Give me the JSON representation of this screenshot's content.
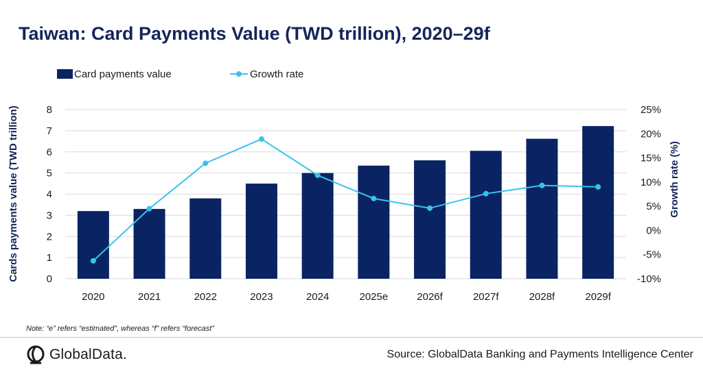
{
  "title": "Taiwan: Card Payments Value (TWD trillion), 2020–29f",
  "note": "Note: “e” refers “estimated”, whereas “f” refers “forecast”",
  "source": "Source: GlobalData Banking and Payments Intelligence Center",
  "logo": {
    "text": "GlobalData.",
    "icon": "globaldata-logo-icon"
  },
  "colors": {
    "bar": "#0a2463",
    "line": "#39c3ec",
    "title": "#14255a",
    "grid": "#d9d9d9"
  },
  "chart_data": {
    "type": "bar+line",
    "categories": [
      "2020",
      "2021",
      "2022",
      "2023",
      "2024",
      "2025e",
      "2026f",
      "2027f",
      "2028f",
      "2029f"
    ],
    "series": [
      {
        "name": "Card payments value",
        "type": "bar",
        "axis": "left",
        "values": [
          3.2,
          3.3,
          3.8,
          4.5,
          5.0,
          5.35,
          5.6,
          6.05,
          6.62,
          7.22
        ]
      },
      {
        "name": "Growth rate",
        "type": "line",
        "axis": "right",
        "values": [
          -6.3,
          4.5,
          13.9,
          18.9,
          11.4,
          6.6,
          4.6,
          7.6,
          9.3,
          9.0
        ]
      }
    ],
    "ylabel_left": "Cards payments value (TWD trillion)",
    "ylabel_right": "Growth rate (%)",
    "ylim_left": [
      0,
      8
    ],
    "yticks_left": [
      "0",
      "1",
      "2",
      "3",
      "4",
      "5",
      "6",
      "7",
      "8"
    ],
    "ylim_right": [
      -10,
      25
    ],
    "yticks_right": [
      "-10%",
      "-5%",
      "0%",
      "5%",
      "10%",
      "15%",
      "20%",
      "25%"
    ],
    "legend_position": "top-left",
    "grid": true
  }
}
